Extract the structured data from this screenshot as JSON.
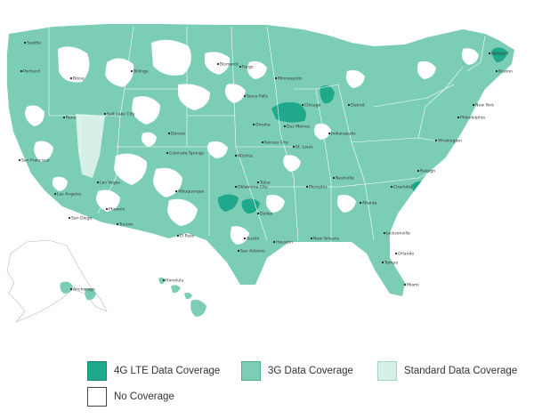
{
  "map": {
    "colors": {
      "lte": "#1fa88b",
      "three_g": "#7ccdb6",
      "standard": "#d6f0e8",
      "none": "#ffffff",
      "state_border": "#ffffff",
      "outline": "#b9b9b9"
    },
    "cities": [
      "Seattle",
      "Portland",
      "Boise",
      "Salt Lake City",
      "Reno",
      "San Francisco",
      "Las Vegas",
      "Los Angeles",
      "San Diego",
      "Phoenix",
      "Tucson",
      "Denver",
      "Colorado Springs",
      "Albuquerque",
      "El Paso",
      "Billings",
      "Bismarck",
      "Fargo",
      "Minneapolis",
      "Sioux Falls",
      "Omaha",
      "Des Moines",
      "Kansas City",
      "Wichita",
      "Oklahoma City",
      "Tulsa",
      "Dallas",
      "Austin",
      "San Antonio",
      "Houston",
      "New Orleans",
      "Memphis",
      "St. Louis",
      "Chicago",
      "Detroit",
      "Indianapolis",
      "Nashville",
      "Atlanta",
      "Charlotte",
      "Raleigh",
      "Washington",
      "Philadelphia",
      "New York",
      "Boston",
      "Portland",
      "Jacksonville",
      "Orlando",
      "Tampa",
      "Miami",
      "Anchorage",
      "Honolulu"
    ]
  },
  "legend": {
    "lte": "4G LTE Data Coverage",
    "three_g": "3G Data Coverage",
    "standard": "Standard Data Coverage",
    "none": "No Coverage"
  }
}
